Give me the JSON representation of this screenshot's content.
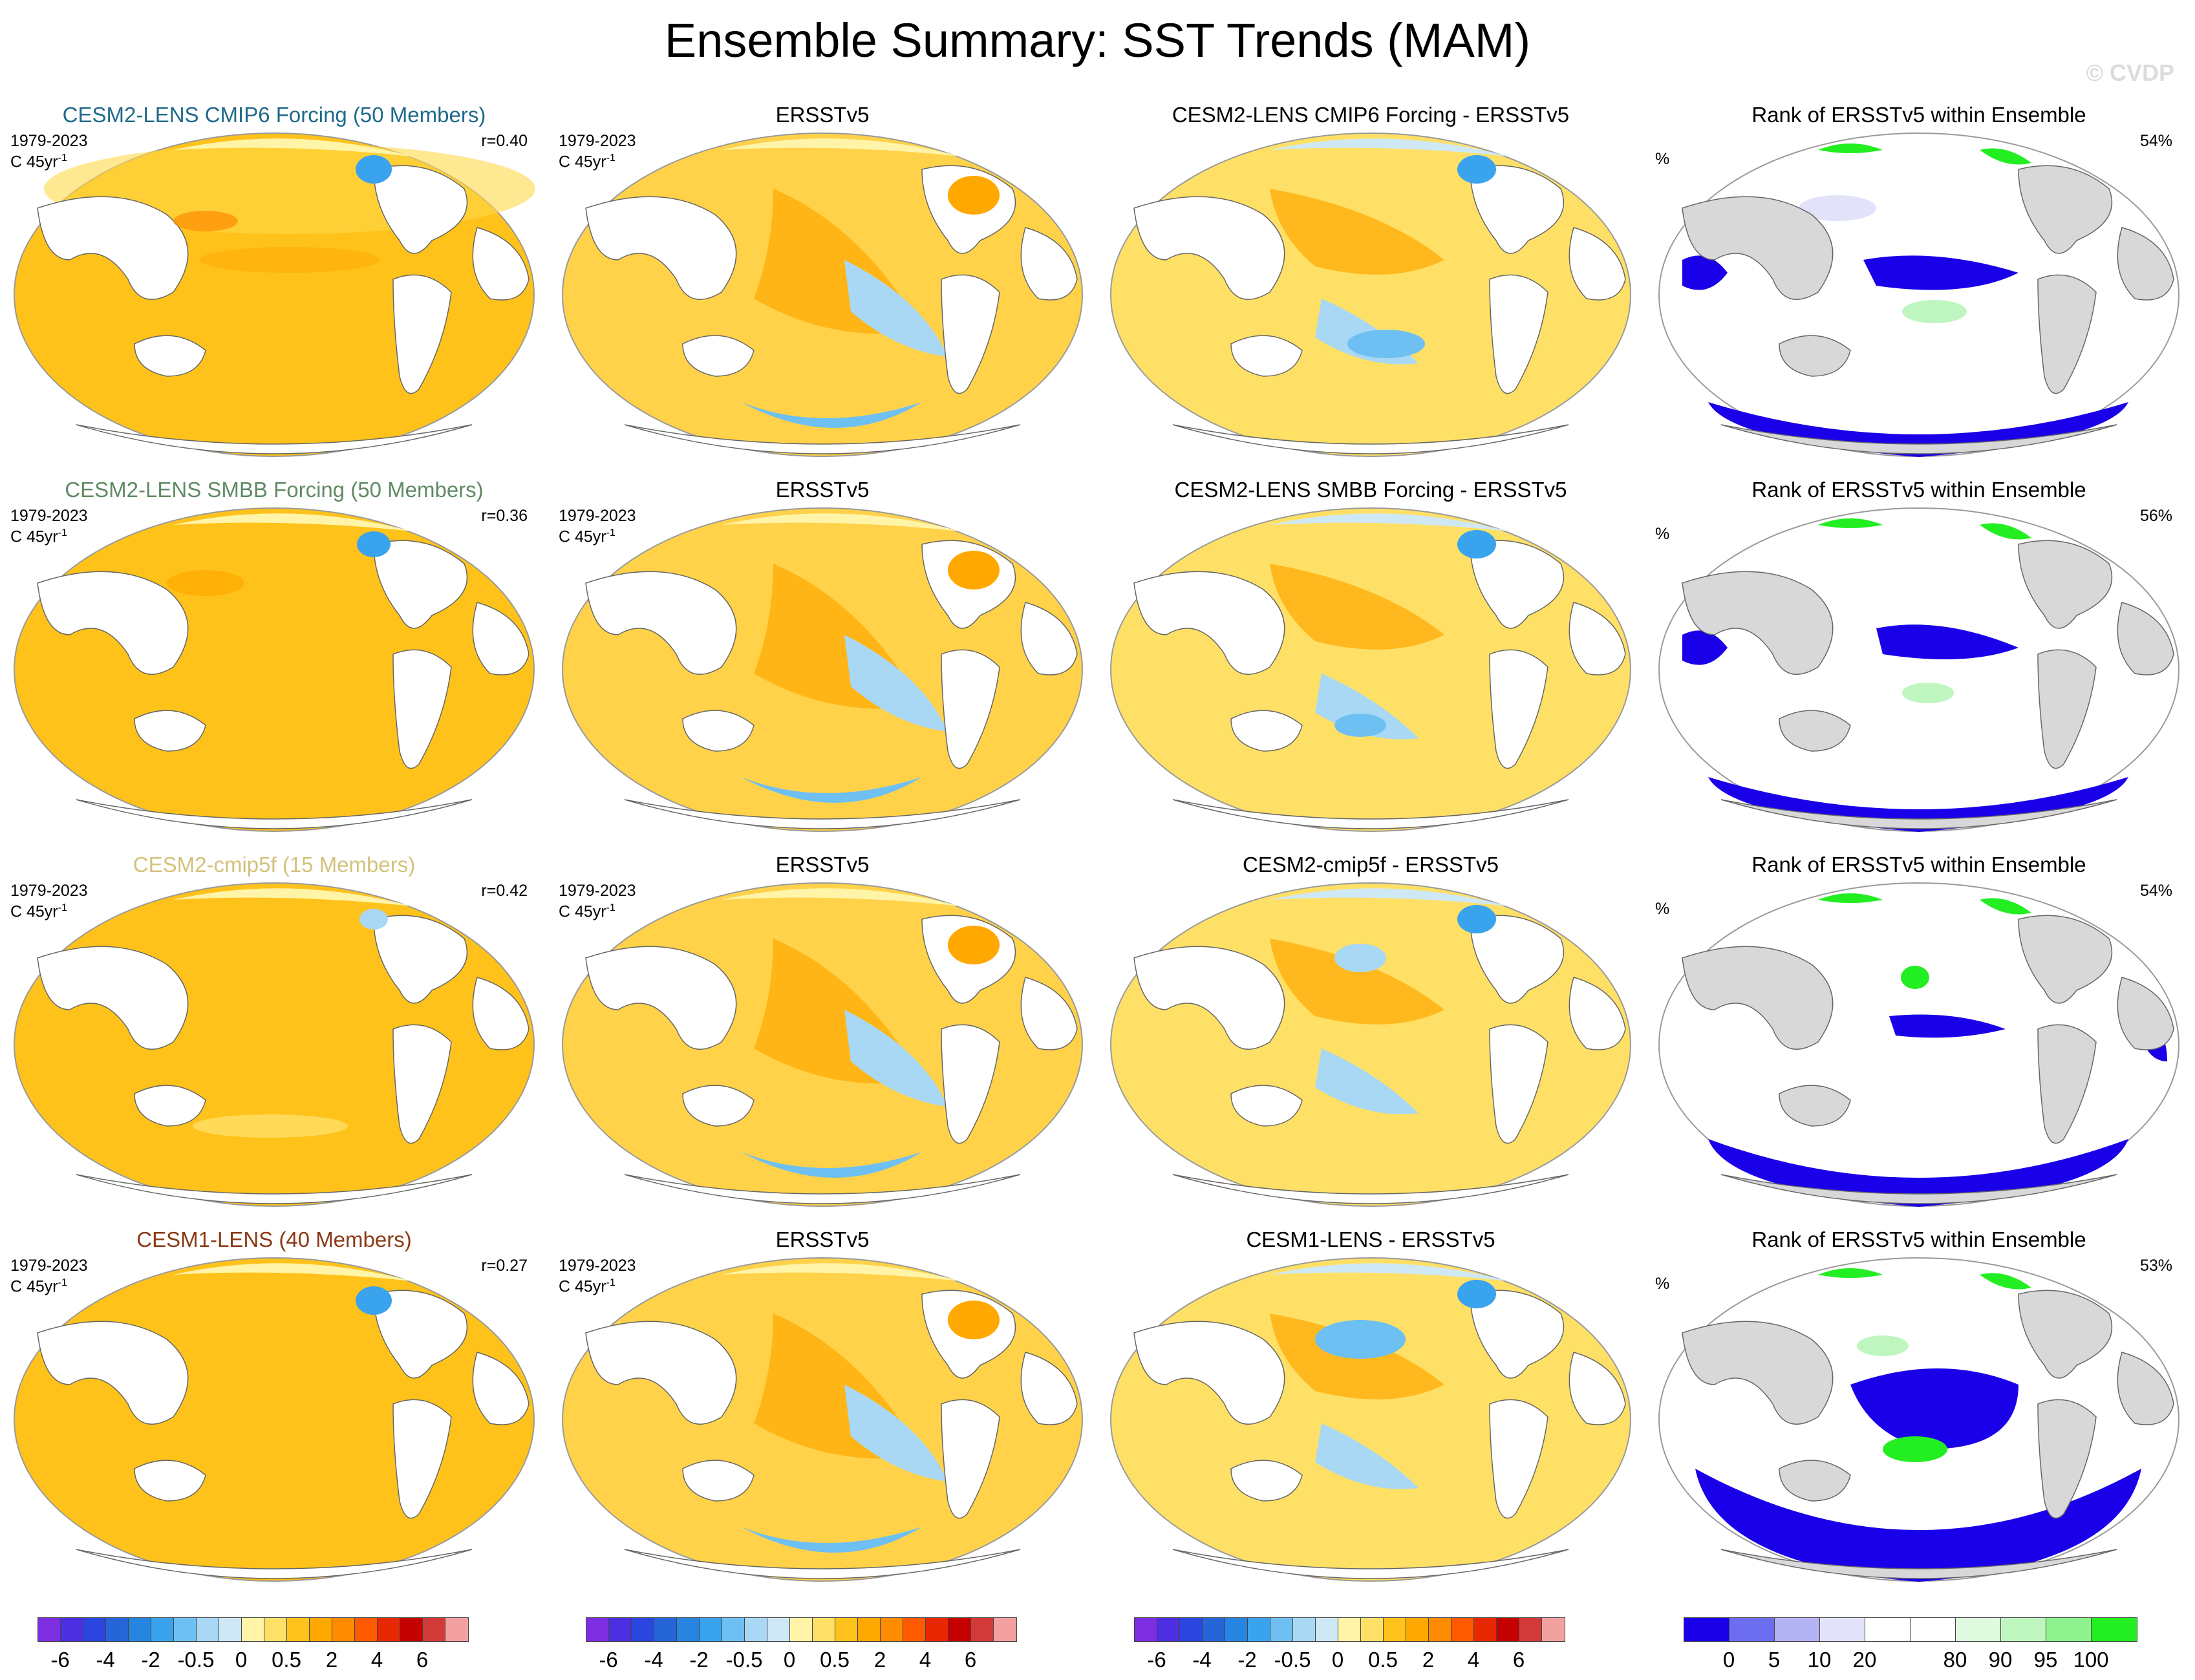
{
  "title": "Ensemble Summary: SST Trends (MAM)",
  "watermark": "© CVDP",
  "rows": [
    {
      "ensemble_title": "CESM2-LENS CMIP6 Forcing (50 Members)",
      "title_color": "#1f6a8a",
      "years": "1979-2023",
      "units_base": "C 45yr",
      "units_exp": "-1",
      "r": "r=0.40",
      "obs_title": "ERSSTv5",
      "diff_title": "CESM2-LENS CMIP6 Forcing - ERSSTv5",
      "rank_title": "Rank of ERSSTv5 within Ensemble",
      "rank_percent_label": "%",
      "rank_value": "54%"
    },
    {
      "ensemble_title": "CESM2-LENS SMBB Forcing (50 Members)",
      "title_color": "#5f8a63",
      "years": "1979-2023",
      "units_base": "C 45yr",
      "units_exp": "-1",
      "r": "r=0.36",
      "obs_title": "ERSSTv5",
      "diff_title": "CESM2-LENS SMBB Forcing - ERSSTv5",
      "rank_title": "Rank of ERSSTv5 within Ensemble",
      "rank_percent_label": "%",
      "rank_value": "56%"
    },
    {
      "ensemble_title": "CESM2-cmip5f (15 Members)",
      "title_color": "#d4c27a",
      "years": "1979-2023",
      "units_base": "C 45yr",
      "units_exp": "-1",
      "r": "r=0.42",
      "obs_title": "ERSSTv5",
      "diff_title": "CESM2-cmip5f - ERSSTv5",
      "rank_title": "Rank of ERSSTv5 within Ensemble",
      "rank_percent_label": "%",
      "rank_value": "54%"
    },
    {
      "ensemble_title": "CESM1-LENS (40 Members)",
      "title_color": "#8a3a14",
      "years": "1979-2023",
      "units_base": "C 45yr",
      "units_exp": "-1",
      "r": "r=0.27",
      "obs_title": "ERSSTv5",
      "diff_title": "CESM1-LENS - ERSSTv5",
      "rank_title": "Rank of ERSSTv5 within Ensemble",
      "rank_percent_label": "%",
      "rank_value": "53%"
    }
  ],
  "sst_colorbar": {
    "colors": [
      "#7d2ee0",
      "#4b2fe0",
      "#2b45e0",
      "#2565d8",
      "#2585e0",
      "#3aa3ee",
      "#6ec0f2",
      "#a8d8f4",
      "#cfe8f5",
      "#fff4a8",
      "#ffe066",
      "#ffc21a",
      "#ffa800",
      "#ff8c00",
      "#ff5a00",
      "#e82800",
      "#c40000",
      "#d23a3a",
      "#f2a0a0"
    ],
    "tick_labels": [
      "-6",
      "-4",
      "-2",
      "-0.5",
      "0",
      "0.5",
      "2",
      "4",
      "6"
    ]
  },
  "rank_colorbar": {
    "colors": [
      "#1a00e8",
      "#6d6df0",
      "#b4b4f4",
      "#e2e2fa",
      "#ffffff",
      "#ffffff",
      "#e0fae0",
      "#bff6bf",
      "#8ef28e",
      "#22ee22"
    ],
    "tick_labels": [
      "0",
      "5",
      "10",
      "20",
      "80",
      "90",
      "95",
      "100"
    ]
  }
}
